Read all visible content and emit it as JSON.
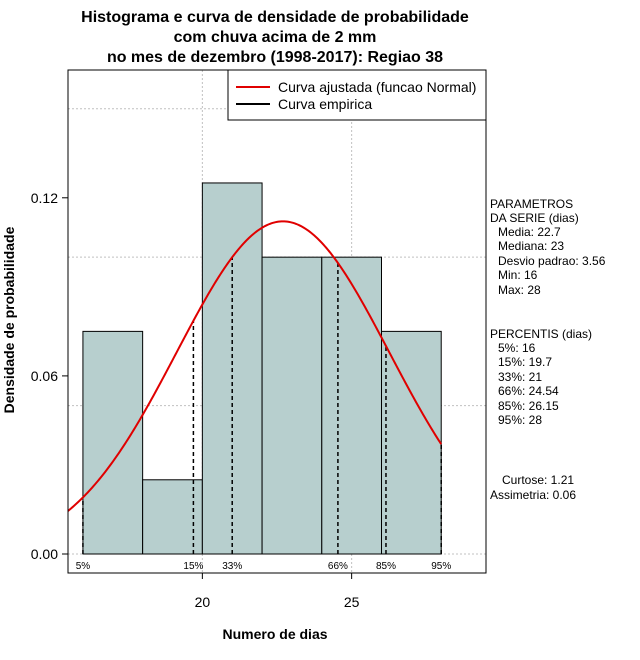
{
  "chart_data": {
    "type": "bar",
    "title_lines": [
      "Histograma e curva de densidade de probabilidade",
      "com chuva acima de 2 mm",
      "no mes de dezembro (1998-2017): Regiao 38"
    ],
    "xlabel": "Numero de dias",
    "ylabel": "Densidade de probabilidade",
    "xlim": [
      15.5,
      29.5
    ],
    "ylim": [
      0,
      0.158
    ],
    "x_ticks": [
      20,
      25
    ],
    "y_ticks": [
      0.0,
      0.06,
      0.12
    ],
    "y_tick_labels": [
      "0.00",
      "0.06",
      "0.12"
    ],
    "grid": true,
    "histogram": {
      "bins": [
        {
          "from": 16,
          "to": 18,
          "density": 0.075
        },
        {
          "from": 18,
          "to": 20,
          "density": 0.025
        },
        {
          "from": 20,
          "to": 22,
          "density": 0.125
        },
        {
          "from": 22,
          "to": 24,
          "density": 0.1
        },
        {
          "from": 24,
          "to": 26,
          "density": 0.1
        },
        {
          "from": 26,
          "to": 28,
          "density": 0.075
        }
      ],
      "color": "#b7cfce"
    },
    "normal_curve": {
      "mean": 22.7,
      "sd": 3.56,
      "color": "#e00000"
    },
    "legend": {
      "position": "top-right",
      "entries": [
        {
          "label": "Curva ajustada (funcao Normal)",
          "color": "#e00000"
        },
        {
          "label": "Curva empirica",
          "color": "#000000"
        }
      ]
    },
    "percentiles": [
      {
        "label": "5%",
        "value": 16
      },
      {
        "label": "15%",
        "value": 19.7
      },
      {
        "label": "33%",
        "value": 21
      },
      {
        "label": "66%",
        "value": 24.54
      },
      {
        "label": "85%",
        "value": 26.15
      },
      {
        "label": "95%",
        "value": 28
      }
    ],
    "side_text": {
      "params_header": [
        "PARAMETROS",
        "DA SERIE (dias)"
      ],
      "params": [
        "Media: 22.7",
        "Mediana: 23",
        "Desvio padrao: 3.56",
        "Min: 16",
        "Max: 28"
      ],
      "percentis_header": "PERCENTIS (dias)",
      "percentis": [
        "5%: 16",
        "15%: 19.7",
        "33%: 21",
        "66%: 24.54",
        "85%: 26.15",
        "95%: 28"
      ],
      "curtose": "Curtose: 1.21",
      "assimetria": "Assimetria: 0.06"
    }
  }
}
